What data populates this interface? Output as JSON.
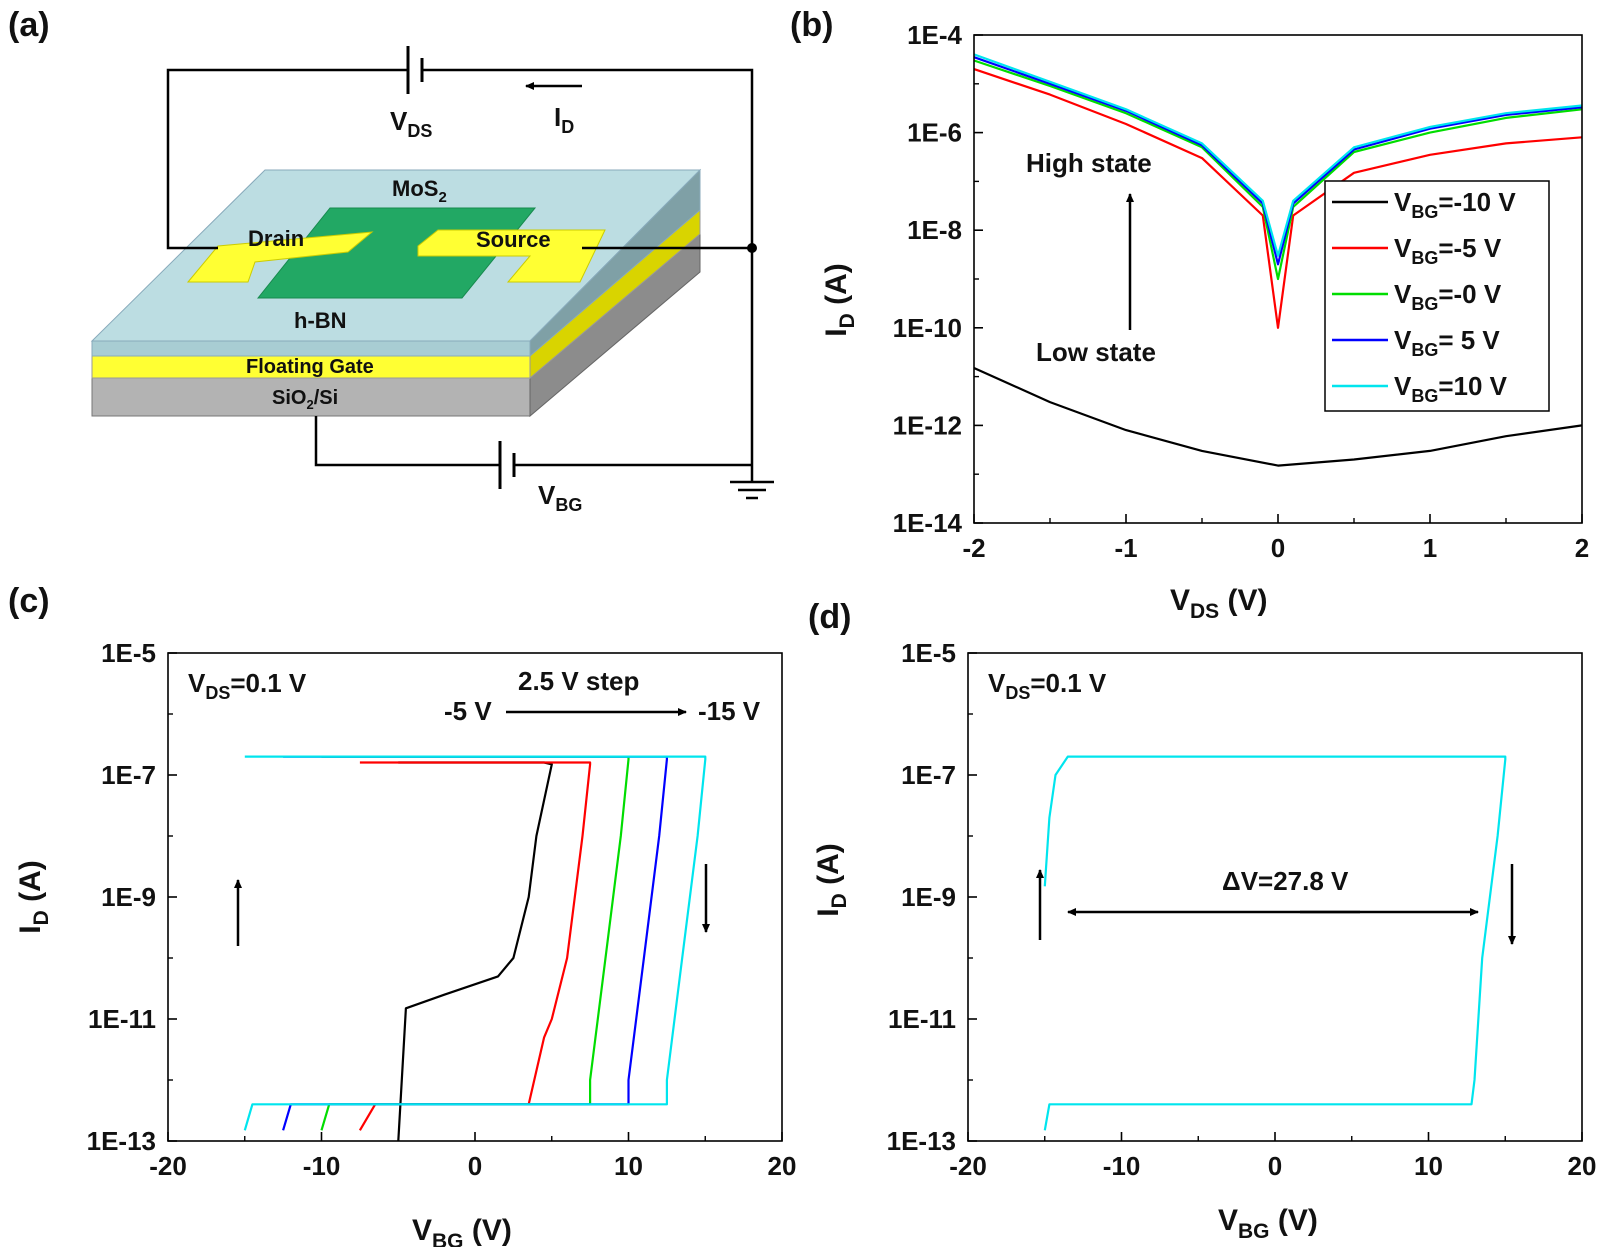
{
  "panel_labels": {
    "a": "(a)",
    "b": "(b)",
    "c": "(c)",
    "d": "(d)"
  },
  "device": {
    "vds": "V",
    "vds_sub": "DS",
    "id": "I",
    "id_sub": "D",
    "vbg": "V",
    "vbg_sub": "BG",
    "mos2": "MoS",
    "mos2_sub": "2",
    "drain": "Drain",
    "source": "Source",
    "hbn": "h-BN",
    "floating_gate": "Floating Gate",
    "sio2_a": "SiO",
    "sio2_sub": "2",
    "sio2_b": "/Si",
    "colors": {
      "hbn": "#bcdde2",
      "gold": "#ffff33",
      "mos2": "#22a864",
      "substrate": "#b3b3b3"
    }
  },
  "chart_data": [
    {
      "type": "line",
      "panel": "b",
      "xlabel": "V",
      "xlabel_sub": "DS",
      "xlabel_unit": " (V)",
      "ylabel": "I",
      "ylabel_sub": "D",
      "ylabel_unit": " (A)",
      "xlim": [
        -2,
        2
      ],
      "yscale": "log",
      "ylim": [
        1e-14,
        0.0001
      ],
      "xticks": [
        "-2",
        "-1",
        "0",
        "1",
        "2"
      ],
      "yticks": [
        "1E-14",
        "1E-12",
        "1E-10",
        "1E-8",
        "1E-6",
        "1E-4"
      ],
      "annotations": {
        "high": "High state",
        "low": "Low state"
      },
      "legend": {
        "placement": "center-right",
        "entries": [
          {
            "pre": "V",
            "sub": "BG",
            "post": "=-10 V",
            "color": "#000000"
          },
          {
            "pre": "V",
            "sub": "BG",
            "post": "=-5 V",
            "color": "#ff0000"
          },
          {
            "pre": "V",
            "sub": "BG",
            "post": "=-0 V",
            "color": "#00dd00"
          },
          {
            "pre": "V",
            "sub": "BG",
            "post": "= 5 V",
            "color": "#0000ff"
          },
          {
            "pre": "V",
            "sub": "BG",
            "post": "=10 V",
            "color": "#00e5ee"
          }
        ]
      },
      "series": [
        {
          "color": "#000000",
          "x": [
            -2,
            -1.5,
            -1,
            -0.5,
            0,
            0.5,
            1,
            1.5,
            2
          ],
          "y": [
            1.5e-11,
            3e-12,
            8e-13,
            3e-13,
            1.5e-13,
            2e-13,
            3e-13,
            6e-13,
            1e-12
          ]
        },
        {
          "color": "#ff0000",
          "x": [
            -2,
            -1.5,
            -1,
            -0.5,
            -0.1,
            0,
            0.1,
            0.5,
            1,
            1.5,
            2
          ],
          "y": [
            2e-05,
            6e-06,
            1.5e-06,
            3e-07,
            2e-08,
            1e-10,
            2e-08,
            1.5e-07,
            3.5e-07,
            6e-07,
            8e-07
          ]
        },
        {
          "color": "#00dd00",
          "x": [
            -2,
            -1.5,
            -1,
            -0.5,
            -0.1,
            0,
            0.1,
            0.5,
            1,
            1.5,
            2
          ],
          "y": [
            3e-05,
            9e-06,
            2.5e-06,
            5e-07,
            3e-08,
            1e-09,
            3e-08,
            4e-07,
            1e-06,
            2e-06,
            3e-06
          ]
        },
        {
          "color": "#0000ff",
          "x": [
            -2,
            -1.5,
            -1,
            -0.5,
            -0.1,
            0,
            0.1,
            0.5,
            1,
            1.5,
            2
          ],
          "y": [
            3.5e-05,
            1e-05,
            2.8e-06,
            5.5e-07,
            3.5e-08,
            2e-09,
            3.5e-08,
            4.5e-07,
            1.2e-06,
            2.3e-06,
            3.3e-06
          ]
        },
        {
          "color": "#00e5ee",
          "x": [
            -2,
            -1.5,
            -1,
            -0.5,
            -0.1,
            0,
            0.1,
            0.5,
            1,
            1.5,
            2
          ],
          "y": [
            4e-05,
            1.1e-05,
            3e-06,
            6e-07,
            4e-08,
            3e-09,
            4e-08,
            5e-07,
            1.3e-06,
            2.5e-06,
            3.6e-06
          ]
        }
      ]
    },
    {
      "type": "line",
      "panel": "c",
      "xlabel": "V",
      "xlabel_sub": "BG",
      "xlabel_unit": " (V)",
      "ylabel": "I",
      "ylabel_sub": "D",
      "ylabel_unit": " (A)",
      "xlim": [
        -20,
        20
      ],
      "yscale": "log",
      "ylim": [
        1e-13,
        1e-05
      ],
      "xticks": [
        "-20",
        "-10",
        "0",
        "10",
        "20"
      ],
      "yticks": [
        "1E-13",
        "1E-11",
        "1E-9",
        "1E-7",
        "1E-5"
      ],
      "annotations": {
        "vds": "V",
        "vds_sub": "DS",
        "vds_post": "=0.1 V",
        "step": "2.5 V step",
        "start": "-5 V",
        "end": "-15 V"
      },
      "series": [
        {
          "color": "#000000",
          "x": [
            -5,
            -4.5,
            -3.5,
            -3,
            4.5,
            5,
            4,
            3.5,
            2.5,
            1.5,
            -2,
            -4.5,
            -5
          ],
          "y": [
            1.6e-07,
            1.6e-07,
            1.6e-07,
            1.6e-07,
            1.6e-07,
            1.5e-07,
            1e-08,
            1e-09,
            1e-10,
            5e-11,
            2.5e-11,
            1.5e-11,
            1e-13
          ]
        },
        {
          "color": "#ff0000",
          "x": [
            -7.5,
            -7,
            -6.5,
            7.5,
            7.5,
            7,
            6.5,
            6,
            5,
            4.5,
            3.5,
            -6.5,
            -7.5
          ],
          "y": [
            1.6e-07,
            1.6e-07,
            1.6e-07,
            1.6e-07,
            1.5e-07,
            1e-08,
            1e-09,
            1e-10,
            1e-11,
            5e-12,
            4e-13,
            4e-13,
            1.5e-13
          ]
        },
        {
          "color": "#00dd00",
          "x": [
            -10,
            -9.5,
            -9,
            10,
            10,
            9.5,
            8.5,
            7.5,
            7.5,
            -9.5,
            -10
          ],
          "y": [
            2e-07,
            2e-07,
            2e-07,
            2e-07,
            1.8e-07,
            1e-08,
            1e-10,
            1e-12,
            4e-13,
            4e-13,
            1.5e-13
          ]
        },
        {
          "color": "#0000ff",
          "x": [
            -12.5,
            -12,
            -11.5,
            12.5,
            12.5,
            12,
            11,
            10,
            10,
            -12,
            -12.5
          ],
          "y": [
            2e-07,
            2e-07,
            2e-07,
            2e-07,
            1.8e-07,
            1e-08,
            1e-10,
            1e-12,
            4e-13,
            4e-13,
            1.5e-13
          ]
        },
        {
          "color": "#00e5ee",
          "x": [
            -15,
            -14.5,
            -14,
            15,
            15,
            14.5,
            13.5,
            12.5,
            12.5,
            -14.5,
            -15
          ],
          "y": [
            2e-07,
            2e-07,
            2e-07,
            2e-07,
            1.8e-07,
            1e-08,
            1e-10,
            1e-12,
            4e-13,
            4e-13,
            1.5e-13
          ]
        }
      ]
    },
    {
      "type": "line",
      "panel": "d",
      "xlabel": "V",
      "xlabel_sub": "BG",
      "xlabel_unit": " (V)",
      "ylabel": "I",
      "ylabel_sub": "D",
      "ylabel_unit": " (A)",
      "xlim": [
        -20,
        20
      ],
      "yscale": "log",
      "ylim": [
        1e-13,
        1e-05
      ],
      "xticks": [
        "-20",
        "-10",
        "0",
        "10",
        "20"
      ],
      "yticks": [
        "1E-13",
        "1E-11",
        "1E-9",
        "1E-7",
        "1E-5"
      ],
      "annotations": {
        "vds": "V",
        "vds_sub": "DS",
        "vds_post": "=0.1 V",
        "delta": "ΔV=27.8 V"
      },
      "series": [
        {
          "color": "#00e5ee",
          "x": [
            -15,
            -14.7,
            -14.3,
            -13.5,
            15,
            15,
            14.5,
            13.5,
            13,
            12.8,
            -14.7,
            -15
          ],
          "y": [
            1.5e-09,
            2e-08,
            1e-07,
            2e-07,
            2e-07,
            1.8e-07,
            1e-08,
            1e-10,
            1e-12,
            4e-13,
            4e-13,
            1.5e-13
          ]
        }
      ]
    }
  ]
}
